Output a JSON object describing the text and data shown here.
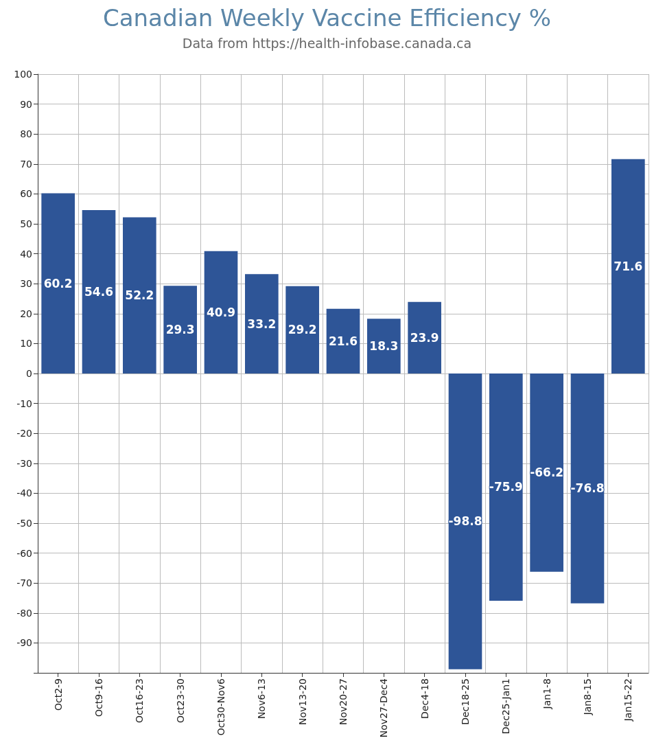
{
  "chart_data": {
    "type": "bar",
    "title": "Canadian Weekly Vaccine Efficiency %",
    "subtitle": "Data from https://health-infobase.canada.ca",
    "categories": [
      "Oct2-9",
      "Oct9-16",
      "Oct16-23",
      "Oct23-30",
      "Oct30-Nov6",
      "Nov6-13",
      "Nov13-20",
      "Nov20-27",
      "Nov27-Dec4",
      "Dec4-18",
      "Dec18-25",
      "Dec25-Jan1",
      "Jan1-8",
      "Jan8-15",
      "Jan15-22"
    ],
    "values": [
      60.2,
      54.6,
      52.2,
      29.3,
      40.9,
      33.2,
      29.2,
      21.6,
      18.3,
      23.9,
      -98.8,
      -75.9,
      -66.2,
      -76.8,
      71.6
    ],
    "color": "#2e5597",
    "data_labels": true,
    "grid": true,
    "ylim": [
      -100,
      100
    ],
    "yticks": [
      {
        "value": -100,
        "label": null
      },
      -90,
      -80,
      -70,
      -60,
      -50,
      -40,
      -30,
      -20,
      -10,
      0,
      10,
      20,
      30,
      40,
      50,
      60,
      70,
      80,
      90,
      100
    ]
  }
}
